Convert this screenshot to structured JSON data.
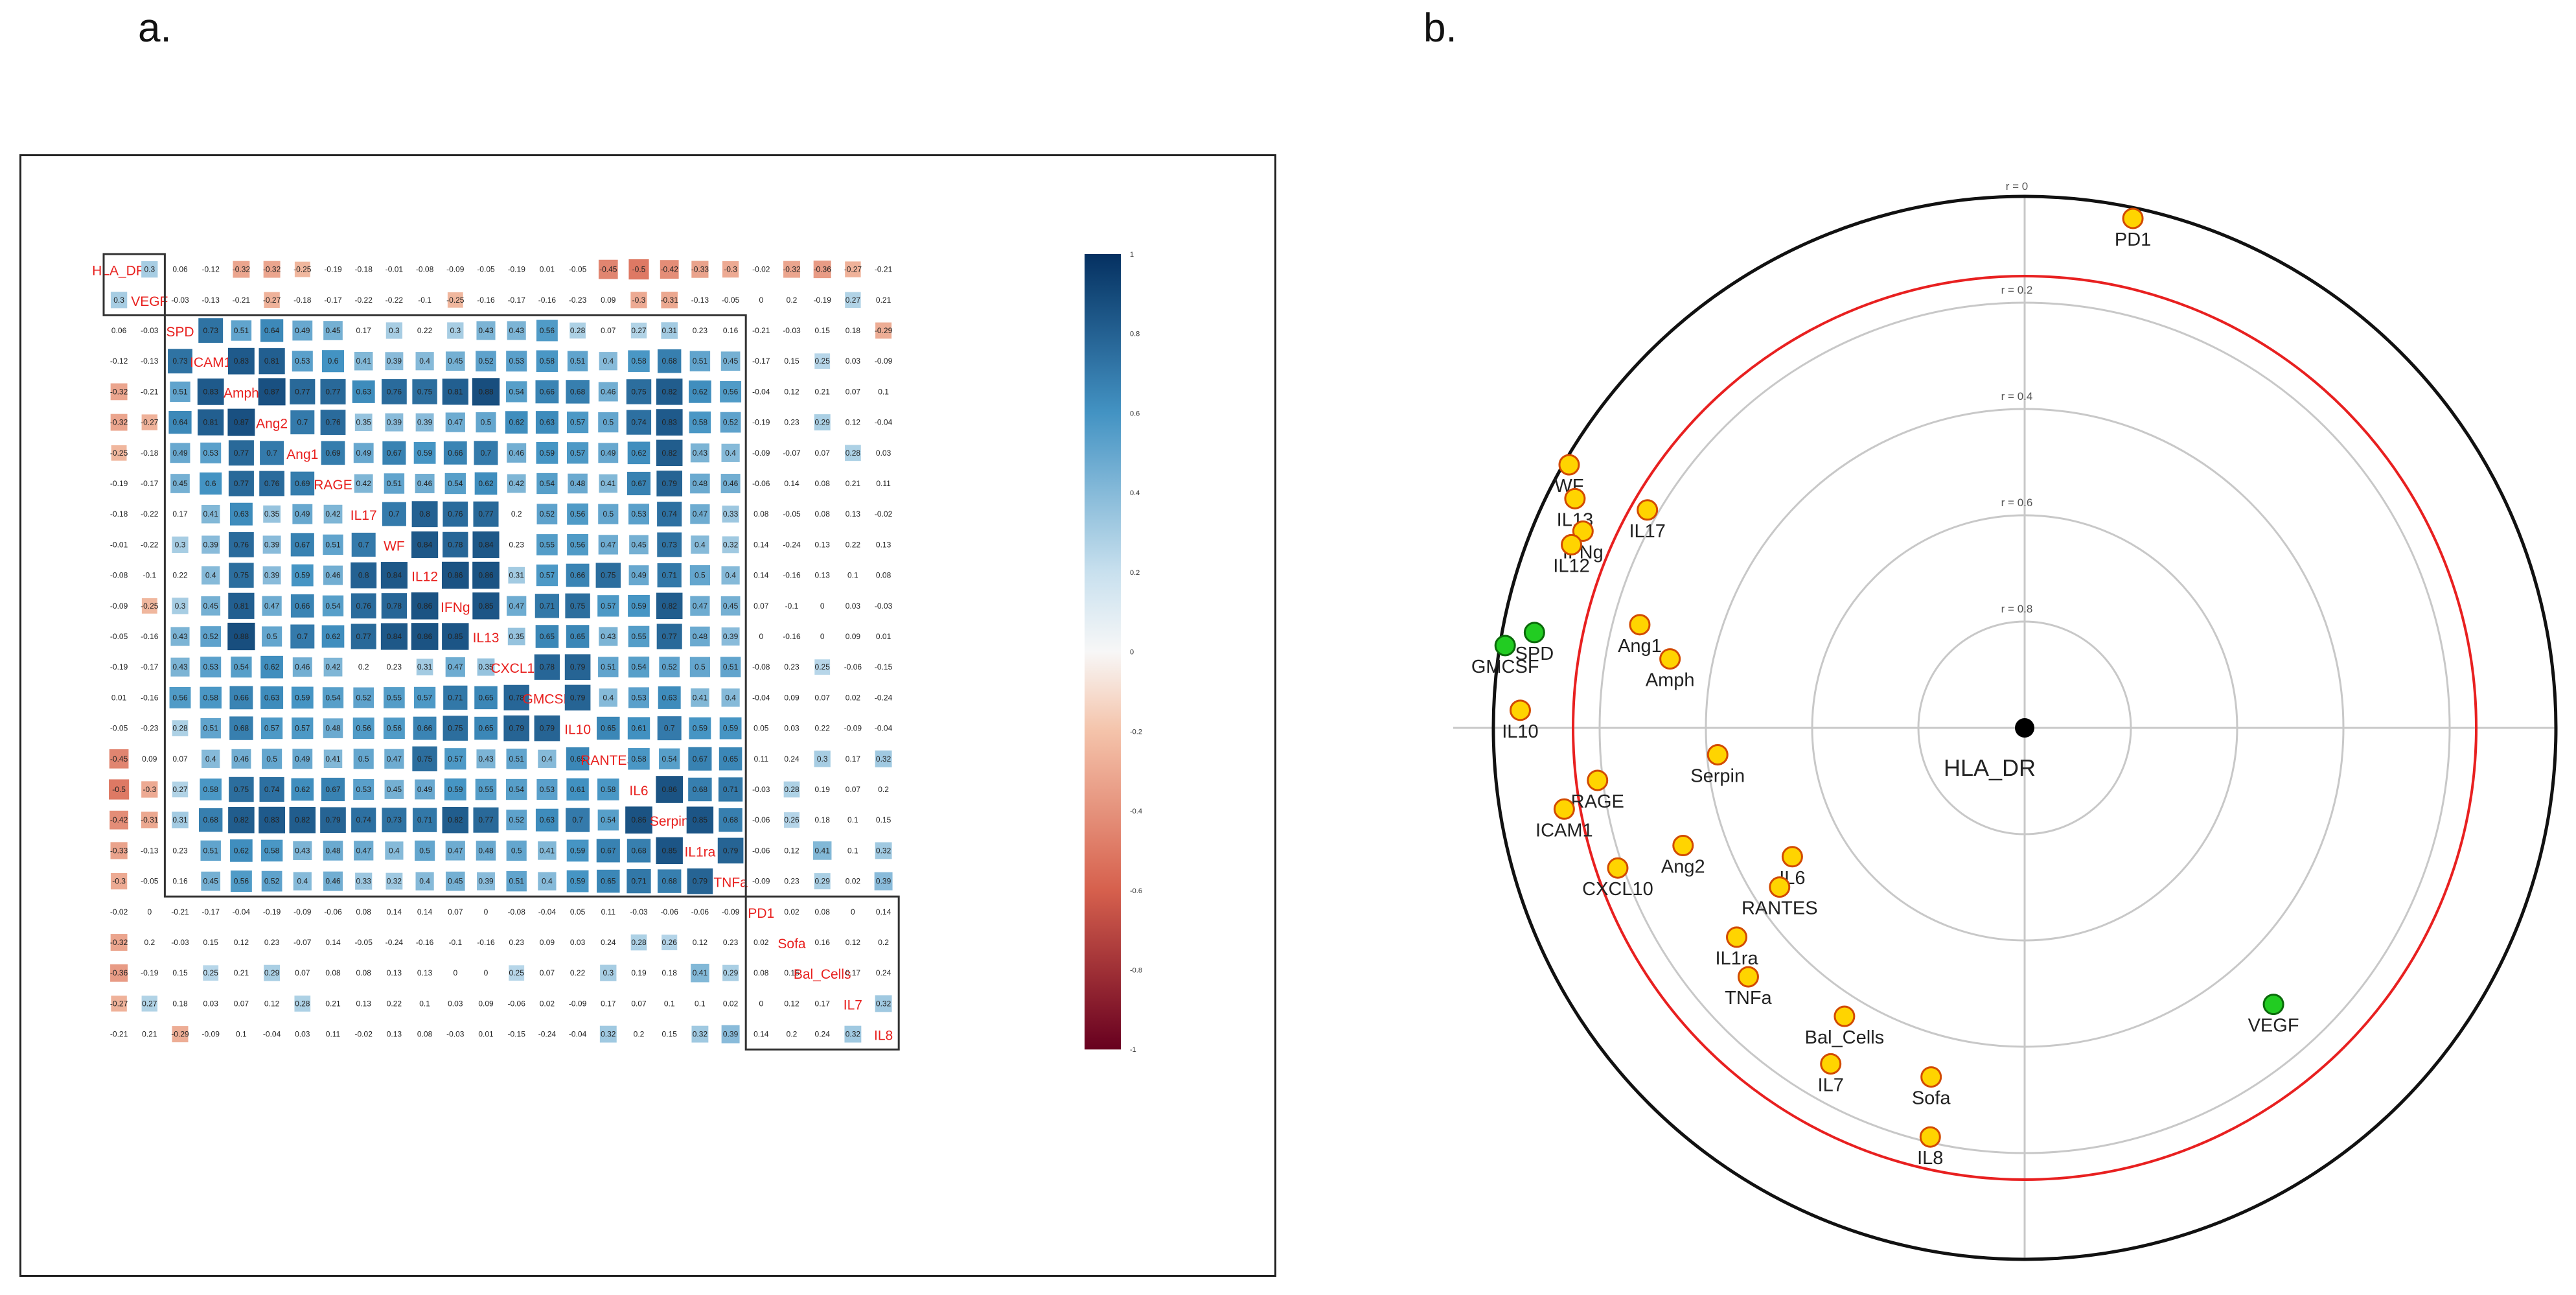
{
  "panels": {
    "a_label": "a.",
    "b_label": "b."
  },
  "chart_data": [
    {
      "type": "heatmap",
      "title": "",
      "variables": [
        "HLA_DR",
        "VEGF",
        "SPD",
        "ICAM1",
        "Amph",
        "Ang2",
        "Ang1",
        "RAGE",
        "IL17",
        "WF",
        "IL12",
        "IFNg",
        "IL13",
        "CXCL10",
        "GMCSF",
        "IL10",
        "RANTES",
        "IL6",
        "Serpin",
        "IL1ra",
        "TNFa",
        "PD1",
        "Sofa",
        "Bal_Cells",
        "IL7",
        "IL8"
      ],
      "values": [
        [
          1,
          0.3,
          0.06,
          -0.12,
          -0.32,
          -0.32,
          -0.25,
          -0.19,
          -0.18,
          -0.01,
          -0.08,
          -0.09,
          -0.05,
          -0.19,
          0.01,
          -0.05,
          -0.45,
          -0.5,
          -0.42,
          -0.33,
          -0.3,
          -0.02,
          -0.32,
          -0.36,
          -0.27,
          -0.21
        ],
        [
          0.3,
          1,
          -0.03,
          -0.13,
          -0.21,
          -0.27,
          -0.18,
          -0.17,
          -0.22,
          -0.22,
          -0.1,
          -0.25,
          -0.16,
          -0.17,
          -0.16,
          -0.23,
          0.09,
          -0.3,
          -0.31,
          -0.13,
          -0.05,
          0,
          0.2,
          -0.19,
          0.27,
          0.21
        ],
        [
          0.06,
          -0.03,
          1,
          0.73,
          0.51,
          0.64,
          0.49,
          0.45,
          0.17,
          0.3,
          0.22,
          0.3,
          0.43,
          0.43,
          0.56,
          0.28,
          0.07,
          0.27,
          0.31,
          0.23,
          0.16,
          -0.21,
          -0.03,
          0.15,
          0.18,
          -0.29
        ],
        [
          -0.12,
          -0.13,
          0.73,
          1,
          0.83,
          0.81,
          0.53,
          0.6,
          0.41,
          0.39,
          0.4,
          0.45,
          0.52,
          0.53,
          0.58,
          0.51,
          0.4,
          0.58,
          0.68,
          0.51,
          0.45,
          -0.17,
          0.15,
          0.25,
          0.03,
          -0.09
        ],
        [
          -0.32,
          -0.21,
          0.51,
          0.83,
          1,
          0.87,
          0.77,
          0.77,
          0.63,
          0.76,
          0.75,
          0.81,
          0.88,
          0.54,
          0.66,
          0.68,
          0.46,
          0.75,
          0.82,
          0.62,
          0.56,
          -0.04,
          0.12,
          0.21,
          0.07,
          0.1
        ],
        [
          -0.32,
          -0.27,
          0.64,
          0.81,
          0.87,
          1,
          0.7,
          0.76,
          0.35,
          0.39,
          0.39,
          0.47,
          0.5,
          0.62,
          0.63,
          0.57,
          0.5,
          0.74,
          0.83,
          0.58,
          0.52,
          -0.19,
          0.23,
          0.29,
          0.12,
          -0.04
        ],
        [
          -0.25,
          -0.18,
          0.49,
          0.53,
          0.77,
          0.7,
          1,
          0.69,
          0.49,
          0.67,
          0.59,
          0.66,
          0.7,
          0.46,
          0.59,
          0.57,
          0.49,
          0.62,
          0.82,
          0.43,
          0.4,
          -0.09,
          -0.07,
          0.07,
          0.28,
          0.03
        ],
        [
          -0.19,
          -0.17,
          0.45,
          0.6,
          0.77,
          0.76,
          0.69,
          1,
          0.42,
          0.51,
          0.46,
          0.54,
          0.62,
          0.42,
          0.54,
          0.48,
          0.41,
          0.67,
          0.79,
          0.48,
          0.46,
          -0.06,
          0.14,
          0.08,
          0.21,
          0.11
        ],
        [
          -0.18,
          -0.22,
          0.17,
          0.41,
          0.63,
          0.35,
          0.49,
          0.42,
          1,
          0.7,
          0.8,
          0.76,
          0.77,
          0.2,
          0.52,
          0.56,
          0.5,
          0.53,
          0.74,
          0.47,
          0.33,
          0.08,
          -0.05,
          0.08,
          0.13,
          -0.02
        ],
        [
          -0.01,
          -0.22,
          0.3,
          0.39,
          0.76,
          0.39,
          0.67,
          0.51,
          0.7,
          1,
          0.84,
          0.78,
          0.84,
          0.23,
          0.55,
          0.56,
          0.47,
          0.45,
          0.73,
          0.4,
          0.32,
          0.14,
          -0.24,
          0.13,
          0.22,
          0.13
        ],
        [
          -0.08,
          -0.1,
          0.22,
          0.4,
          0.75,
          0.39,
          0.59,
          0.46,
          0.8,
          0.84,
          1,
          0.86,
          0.86,
          0.31,
          0.57,
          0.66,
          0.75,
          0.49,
          0.71,
          0.5,
          0.4,
          0.14,
          -0.16,
          0.13,
          0.1,
          0.08
        ],
        [
          -0.09,
          -0.25,
          0.3,
          0.45,
          0.81,
          0.47,
          0.66,
          0.54,
          0.76,
          0.78,
          0.86,
          1,
          0.85,
          0.47,
          0.71,
          0.75,
          0.57,
          0.59,
          0.82,
          0.47,
          0.45,
          0.07,
          -0.1,
          0,
          0.03,
          -0.03
        ],
        [
          -0.05,
          -0.16,
          0.43,
          0.52,
          0.88,
          0.5,
          0.7,
          0.62,
          0.77,
          0.84,
          0.86,
          0.85,
          1,
          0.35,
          0.65,
          0.65,
          0.43,
          0.55,
          0.77,
          0.48,
          0.39,
          0,
          -0.16,
          0,
          0.09,
          0.01
        ],
        [
          -0.19,
          -0.17,
          0.43,
          0.53,
          0.54,
          0.62,
          0.46,
          0.42,
          0.2,
          0.23,
          0.31,
          0.47,
          0.35,
          1,
          0.78,
          0.79,
          0.51,
          0.54,
          0.52,
          0.5,
          0.51,
          -0.08,
          0.23,
          0.25,
          -0.06,
          -0.15
        ],
        [
          0.01,
          -0.16,
          0.56,
          0.58,
          0.66,
          0.63,
          0.59,
          0.54,
          0.52,
          0.55,
          0.57,
          0.71,
          0.65,
          0.78,
          1,
          0.79,
          0.4,
          0.53,
          0.63,
          0.41,
          0.4,
          -0.04,
          0.09,
          0.07,
          0.02,
          -0.24
        ],
        [
          -0.05,
          -0.23,
          0.28,
          0.51,
          0.68,
          0.57,
          0.57,
          0.48,
          0.56,
          0.56,
          0.66,
          0.75,
          0.65,
          0.79,
          0.79,
          1,
          0.65,
          0.61,
          0.7,
          0.59,
          0.59,
          0.05,
          0.03,
          0.22,
          -0.09,
          -0.04
        ],
        [
          -0.45,
          0.09,
          0.07,
          0.4,
          0.46,
          0.5,
          0.49,
          0.41,
          0.5,
          0.47,
          0.75,
          0.57,
          0.43,
          0.51,
          0.4,
          0.65,
          1,
          0.58,
          0.54,
          0.67,
          0.65,
          0.11,
          0.24,
          0.3,
          0.17,
          0.32
        ],
        [
          -0.5,
          -0.3,
          0.27,
          0.58,
          0.75,
          0.74,
          0.62,
          0.67,
          0.53,
          0.45,
          0.49,
          0.59,
          0.55,
          0.54,
          0.53,
          0.61,
          0.58,
          1,
          0.86,
          0.68,
          0.71,
          -0.03,
          0.28,
          0.19,
          0.07,
          0.2
        ],
        [
          -0.42,
          -0.31,
          0.31,
          0.68,
          0.82,
          0.83,
          0.82,
          0.79,
          0.74,
          0.73,
          0.71,
          0.82,
          0.77,
          0.52,
          0.63,
          0.7,
          0.54,
          0.86,
          1,
          0.85,
          0.68,
          -0.06,
          0.26,
          0.18,
          0.1,
          0.15
        ],
        [
          -0.33,
          -0.13,
          0.23,
          0.51,
          0.62,
          0.58,
          0.43,
          0.48,
          0.47,
          0.4,
          0.5,
          0.47,
          0.48,
          0.5,
          0.41,
          0.59,
          0.67,
          0.68,
          0.85,
          1,
          0.79,
          -0.06,
          0.12,
          0.41,
          0.1,
          0.32
        ],
        [
          -0.3,
          -0.05,
          0.16,
          0.45,
          0.56,
          0.52,
          0.4,
          0.46,
          0.33,
          0.32,
          0.4,
          0.45,
          0.39,
          0.51,
          0.4,
          0.59,
          0.65,
          0.71,
          0.68,
          0.79,
          1,
          -0.09,
          0.23,
          0.29,
          0.02,
          0.39
        ],
        [
          -0.02,
          0,
          -0.21,
          -0.17,
          -0.04,
          -0.19,
          -0.09,
          -0.06,
          0.08,
          0.14,
          0.14,
          0.07,
          0,
          -0.08,
          -0.04,
          0.05,
          0.11,
          -0.03,
          -0.06,
          -0.06,
          -0.09,
          1,
          0.02,
          0.08,
          0,
          0.14
        ],
        [
          -0.32,
          0.2,
          -0.03,
          0.15,
          0.12,
          0.23,
          -0.07,
          0.14,
          -0.05,
          -0.24,
          -0.16,
          -0.1,
          -0.16,
          0.23,
          0.09,
          0.03,
          0.24,
          0.28,
          0.26,
          0.12,
          0.23,
          0.02,
          1,
          0.16,
          0.12,
          0.2
        ],
        [
          -0.36,
          -0.19,
          0.15,
          0.25,
          0.21,
          0.29,
          0.07,
          0.08,
          0.08,
          0.13,
          0.13,
          0,
          0,
          0.25,
          0.07,
          0.22,
          0.3,
          0.19,
          0.18,
          0.41,
          0.29,
          0.08,
          0.16,
          1,
          0.17,
          0.24
        ],
        [
          -0.27,
          0.27,
          0.18,
          0.03,
          0.07,
          0.12,
          0.28,
          0.21,
          0.13,
          0.22,
          0.1,
          0.03,
          0.09,
          -0.06,
          0.02,
          -0.09,
          0.17,
          0.07,
          0.1,
          0.1,
          0.02,
          0,
          0.12,
          0.17,
          1,
          0.32
        ],
        [
          -0.21,
          0.21,
          -0.29,
          -0.09,
          0.1,
          -0.04,
          0.03,
          0.11,
          -0.02,
          0.13,
          0.08,
          -0.03,
          0.01,
          -0.15,
          -0.24,
          -0.04,
          0.32,
          0.2,
          0.15,
          0.32,
          0.39,
          0.14,
          0.2,
          0.24,
          0.32,
          1
        ]
      ],
      "colorbar_ticks": [
        "1",
        "0.8",
        "0.6",
        "0.4",
        "0.2",
        "0",
        "-0.2",
        "-0.4",
        "-0.6",
        "-0.8",
        "-1"
      ],
      "colorbar_range": [
        -1,
        1
      ],
      "cluster_boxes": [
        {
          "from": "HLA_DR",
          "to": "VEGF"
        },
        {
          "from": "SPD",
          "to": "TNFa"
        },
        {
          "from": "PD1",
          "to": "IL8"
        }
      ]
    },
    {
      "type": "scatter",
      "subtype": "polar-correlation",
      "center_label": "HLA_DR",
      "ring_labels": [
        {
          "r": 0,
          "label": "r = 0"
        },
        {
          "r": 0.2,
          "label": "r = 0.2"
        },
        {
          "r": 0.4,
          "label": "r = 0.4"
        },
        {
          "r": 0.6,
          "label": "r = 0.6"
        },
        {
          "r": 0.8,
          "label": "r = 0.8"
        }
      ],
      "threshold_circle_r": 0.15,
      "colors": {
        "negative": "#ffd400",
        "positive": "#22cc22",
        "threshold": "#e82020"
      },
      "points": [
        {
          "name": "PD1",
          "r": 0.02,
          "angle_deg": 78,
          "sign": "negative"
        },
        {
          "name": "WF",
          "r": 0.01,
          "angle_deg": 150,
          "sign": "negative"
        },
        {
          "name": "IL13",
          "r": 0.05,
          "angle_deg": 153,
          "sign": "negative"
        },
        {
          "name": "IFNg",
          "r": 0.09,
          "angle_deg": 156,
          "sign": "negative"
        },
        {
          "name": "IL12",
          "r": 0.08,
          "angle_deg": 158,
          "sign": "negative"
        },
        {
          "name": "IL17",
          "r": 0.18,
          "angle_deg": 150,
          "sign": "negative"
        },
        {
          "name": "GMCSF",
          "r": 0.01,
          "angle_deg": 171,
          "sign": "positive"
        },
        {
          "name": "SPD",
          "r": 0.06,
          "angle_deg": 169,
          "sign": "positive"
        },
        {
          "name": "Ang1",
          "r": 0.25,
          "angle_deg": 165,
          "sign": "negative"
        },
        {
          "name": "Amph",
          "r": 0.32,
          "angle_deg": 169,
          "sign": "negative"
        },
        {
          "name": "IL10",
          "r": 0.05,
          "angle_deg": 178,
          "sign": "negative"
        },
        {
          "name": "Serpin",
          "r": 0.42,
          "angle_deg": 185,
          "sign": "negative"
        },
        {
          "name": "RAGE",
          "r": 0.19,
          "angle_deg": 187,
          "sign": "negative"
        },
        {
          "name": "ICAM1",
          "r": 0.12,
          "angle_deg": 190,
          "sign": "negative"
        },
        {
          "name": "IL6",
          "r": 0.5,
          "angle_deg": 209,
          "sign": "negative"
        },
        {
          "name": "Ang2",
          "r": 0.32,
          "angle_deg": 199,
          "sign": "negative"
        },
        {
          "name": "RANTES",
          "r": 0.45,
          "angle_deg": 213,
          "sign": "negative"
        },
        {
          "name": "CXCL10",
          "r": 0.19,
          "angle_deg": 199,
          "sign": "negative"
        },
        {
          "name": "IL1ra",
          "r": 0.33,
          "angle_deg": 216,
          "sign": "negative"
        },
        {
          "name": "TNFa",
          "r": 0.3,
          "angle_deg": 222,
          "sign": "negative"
        },
        {
          "name": "VEGF",
          "r": 0.3,
          "angle_deg": 312,
          "sign": "positive"
        },
        {
          "name": "Bal_Cells",
          "r": 0.36,
          "angle_deg": 238,
          "sign": "negative"
        },
        {
          "name": "IL7",
          "r": 0.27,
          "angle_deg": 240,
          "sign": "negative"
        },
        {
          "name": "Sofa",
          "r": 0.32,
          "angle_deg": 255,
          "sign": "negative"
        },
        {
          "name": "IL8",
          "r": 0.21,
          "angle_deg": 257,
          "sign": "negative"
        }
      ]
    }
  ]
}
